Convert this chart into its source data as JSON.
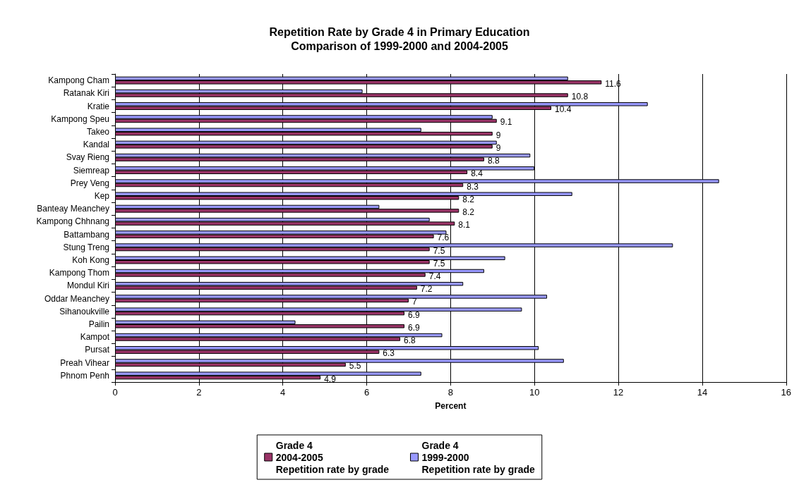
{
  "chart_data": {
    "type": "bar",
    "orientation": "horizontal",
    "title": "Repetition Rate by Grade 4 in Primary Education\nComparison of 1999-2000 and 2004-2005",
    "xlabel": "Percent",
    "categories": [
      "Kampong Cham",
      "Ratanak Kiri",
      "Kratie",
      "Kampong Speu",
      "Takeo",
      "Kandal",
      "Svay Rieng",
      "Siemreap",
      "Prey Veng",
      "Kep",
      "Banteay Meanchey",
      "Kampong Chhnang",
      "Battambang",
      "Stung Treng",
      "Koh Kong",
      "Kampong Thom",
      "Mondul Kiri",
      "Oddar Meanchey",
      "Sihanoukville",
      "Pailin",
      "Kampot",
      "Pursat",
      "Preah Vihear",
      "Phnom Penh"
    ],
    "series": [
      {
        "name": "Grade 4\n2004-2005\nRepetition rate by grade",
        "color": "#993366",
        "values": [
          11.6,
          10.8,
          10.4,
          9.1,
          9,
          9,
          8.8,
          8.4,
          8.3,
          8.2,
          8.2,
          8.1,
          7.6,
          7.5,
          7.5,
          7.4,
          7.2,
          7,
          6.9,
          6.9,
          6.8,
          6.3,
          5.5,
          4.9
        ],
        "value_labels": [
          "11.6",
          "10.8",
          "10.4",
          "9.1",
          "9",
          "9",
          "8.8",
          "8.4",
          "8.3",
          "8.2",
          "8.2",
          "8.1",
          "7.6",
          "7.5",
          "7.5",
          "7.4",
          "7.2",
          "7",
          "6.9",
          "6.9",
          "6.8",
          "6.3",
          "5.5",
          "4.9"
        ]
      },
      {
        "name": "Grade 4\n1999-2000\nRepetition rate by grade",
        "color": "#9999ff",
        "values": [
          10.8,
          5.9,
          12.7,
          9.0,
          7.3,
          9.1,
          9.9,
          10.0,
          14.4,
          10.9,
          6.3,
          7.5,
          7.9,
          13.3,
          9.3,
          8.8,
          8.3,
          10.3,
          9.7,
          4.3,
          7.8,
          10.1,
          10.7,
          7.3
        ]
      }
    ],
    "xlim": [
      0,
      16
    ],
    "xticks": [
      0,
      2,
      4,
      6,
      8,
      10,
      12,
      14,
      16
    ],
    "grid": "x",
    "legend": "bottom"
  }
}
